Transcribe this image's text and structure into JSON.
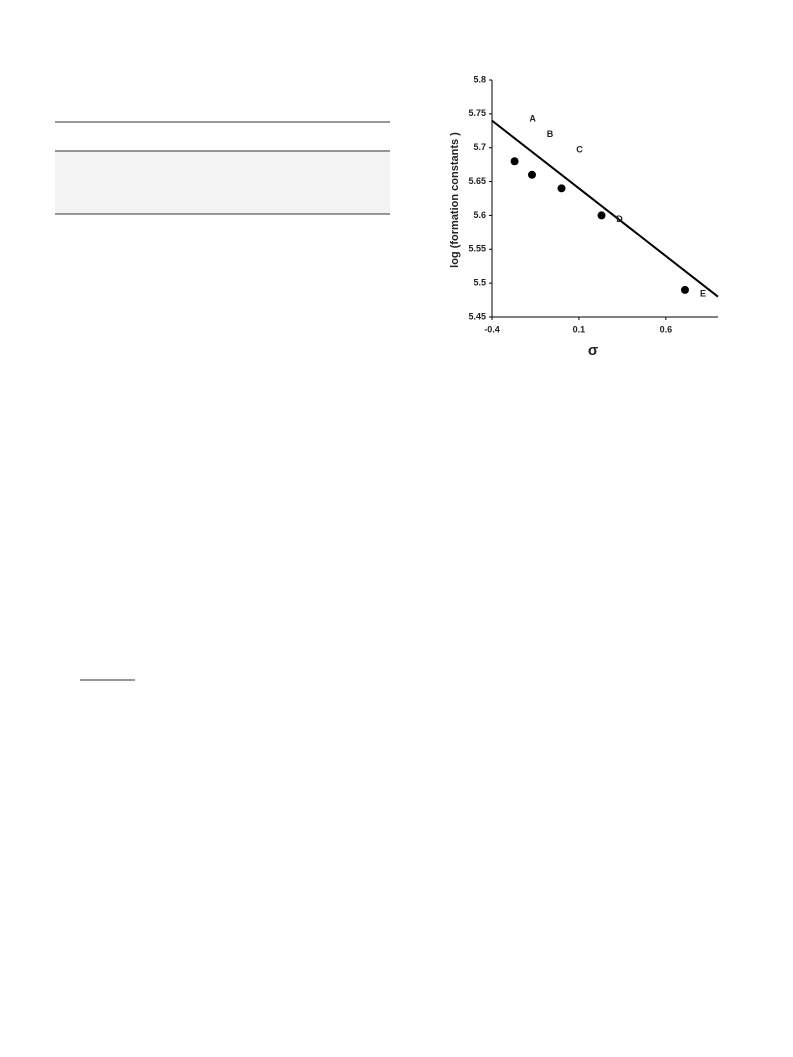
{
  "chart_data": {
    "type": "scatter",
    "y_label": "log (formation constants )",
    "x_label": "σ",
    "x": [
      -0.27,
      -0.17,
      0,
      0.23,
      0.71
    ],
    "values": [
      5.68,
      5.66,
      5.64,
      5.6,
      5.49
    ],
    "point_labels": [
      "A",
      "B",
      "C",
      "D",
      "E"
    ],
    "fit_line": {
      "x": [
        -0.4,
        0.9
      ],
      "y": [
        5.74,
        5.48
      ]
    },
    "color": "#000000",
    "xlim": [
      -0.4,
      0.9
    ],
    "xticks": [
      -0.4,
      0.1,
      0.6
    ],
    "ylim": [
      5.45,
      5.8
    ],
    "yticks": [
      5.45,
      5.5,
      5.55,
      5.6,
      5.65,
      5.7,
      5.75,
      5.8
    ],
    "grid": false
  }
}
